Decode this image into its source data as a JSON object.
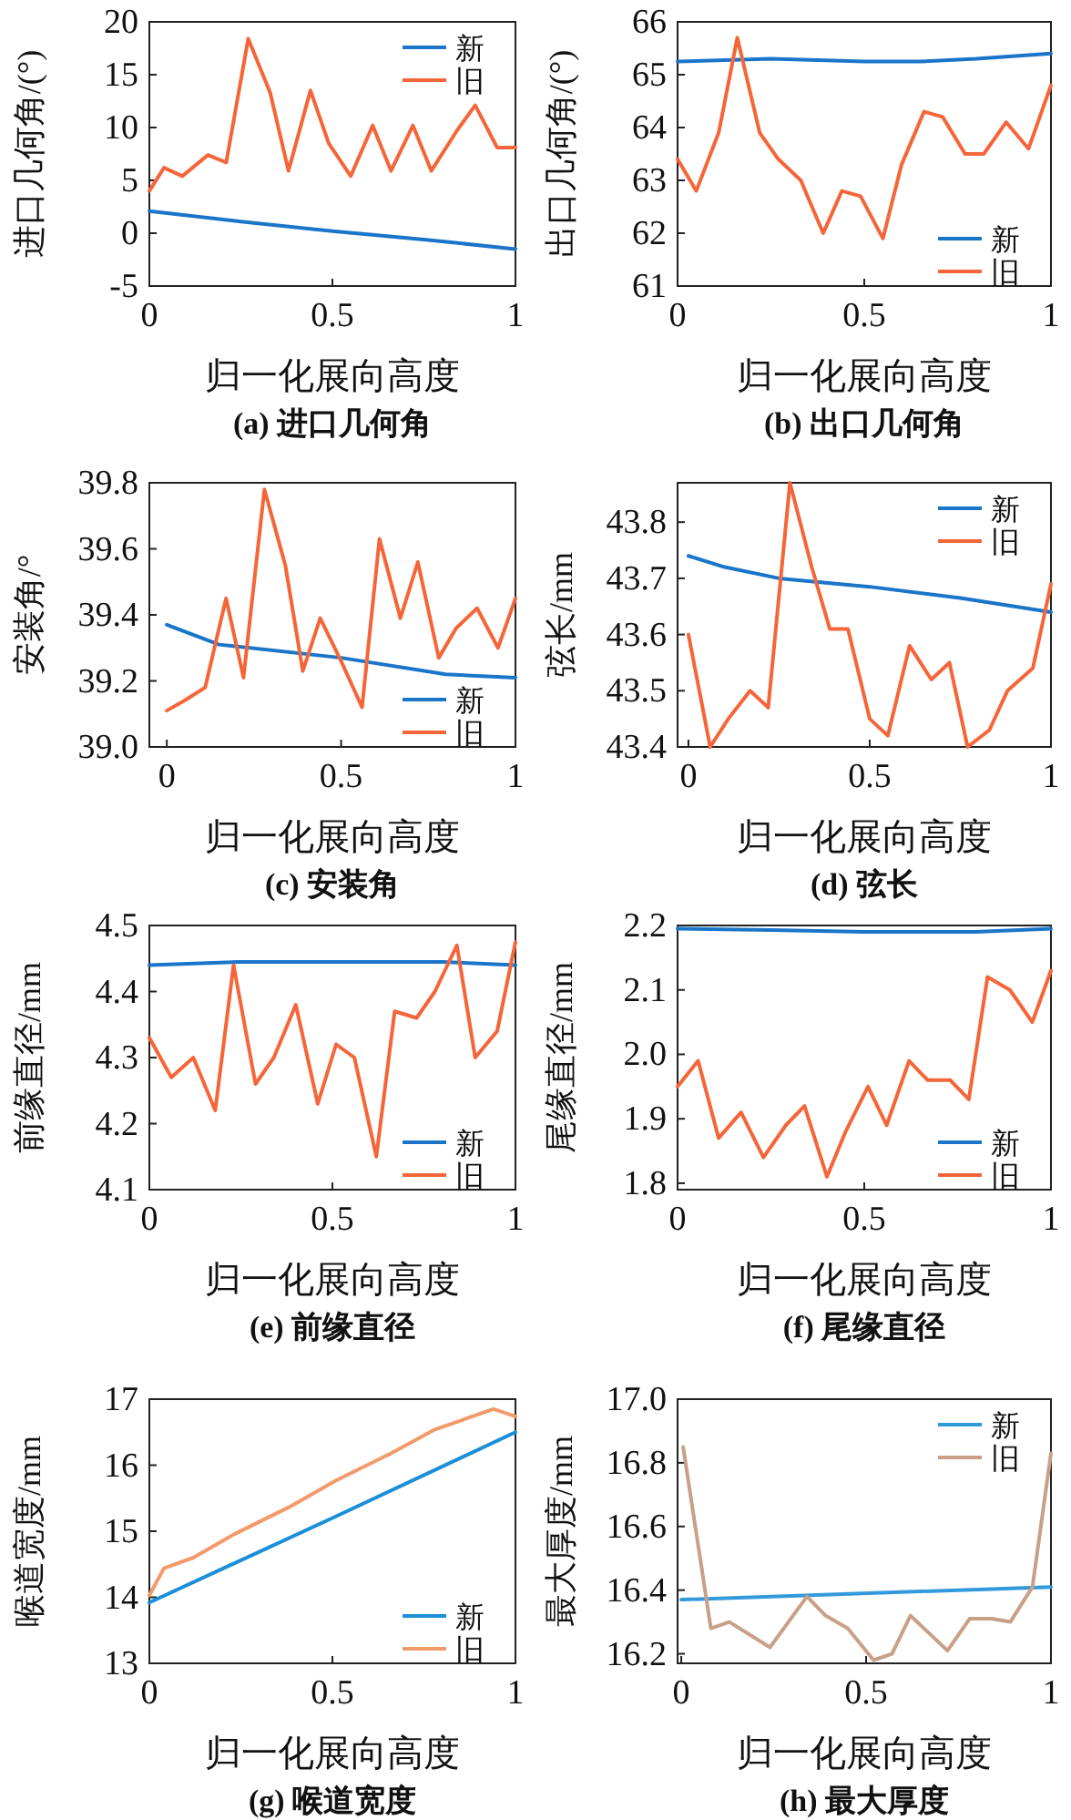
{
  "chart_data": [
    {
      "type": "line",
      "title": "(a) 进口几何角",
      "xlabel": "归一化展向高度",
      "ylabel": "进口几何角/(°)",
      "xlim": [
        0,
        1
      ],
      "ylim": [
        -5,
        20
      ],
      "xticks": [
        0,
        0.5,
        1
      ],
      "yticks": [
        -5,
        0,
        5,
        10,
        15,
        20
      ],
      "legend": "top right",
      "series": [
        {
          "name": "新",
          "color": "#1a75c9",
          "x": [
            0,
            0.25,
            0.5,
            0.75,
            1
          ],
          "values": [
            2.1,
            1.1,
            0.2,
            -0.6,
            -1.5
          ]
        },
        {
          "name": "旧",
          "color": "#f4663a",
          "x": [
            0,
            0.04,
            0.09,
            0.16,
            0.21,
            0.27,
            0.33,
            0.38,
            0.44,
            0.49,
            0.55,
            0.61,
            0.66,
            0.72,
            0.77,
            0.84,
            0.89,
            0.95,
            1
          ],
          "values": [
            4.0,
            6.2,
            5.4,
            7.4,
            6.7,
            18.4,
            13.3,
            5.9,
            13.5,
            8.5,
            5.4,
            10.2,
            5.9,
            10.2,
            5.9,
            9.7,
            12.1,
            8.1,
            8.1
          ]
        }
      ]
    },
    {
      "type": "line",
      "title": "(b) 出口几何角",
      "xlabel": "归一化展向高度",
      "ylabel": "出口几何角/(°)",
      "xlim": [
        0,
        1
      ],
      "ylim": [
        61,
        66
      ],
      "xticks": [
        0,
        0.5,
        1
      ],
      "yticks": [
        61,
        62,
        63,
        64,
        65,
        66
      ],
      "legend": "bottom right",
      "series": [
        {
          "name": "新",
          "color": "#1a75c9",
          "x": [
            0,
            0.25,
            0.5,
            0.65,
            0.8,
            1
          ],
          "values": [
            65.25,
            65.3,
            65.25,
            65.25,
            65.3,
            65.4
          ]
        },
        {
          "name": "旧",
          "color": "#f4663a",
          "x": [
            0,
            0.05,
            0.11,
            0.16,
            0.22,
            0.27,
            0.33,
            0.39,
            0.44,
            0.49,
            0.55,
            0.6,
            0.66,
            0.71,
            0.77,
            0.82,
            0.88,
            0.94,
            1
          ],
          "values": [
            63.4,
            62.8,
            63.9,
            65.7,
            63.9,
            63.4,
            63.0,
            62.0,
            62.8,
            62.7,
            61.9,
            63.3,
            64.3,
            64.2,
            63.5,
            63.5,
            64.1,
            63.6,
            64.8
          ]
        }
      ]
    },
    {
      "type": "line",
      "title": "(c) 安装角",
      "xlabel": "归一化展向高度",
      "ylabel": "安装角/°",
      "xlim": [
        -0.05,
        1
      ],
      "ylim": [
        39.0,
        39.8
      ],
      "xticks": [
        0,
        0.5,
        1
      ],
      "yticks": [
        {
          "value": 39,
          "label": "39.0"
        },
        39.2,
        39.4,
        39.6,
        39.8
      ],
      "legend": "bottom right",
      "series": [
        {
          "name": "新",
          "color": "#1a75c9",
          "x": [
            0,
            0.15,
            0.5,
            0.8,
            1
          ],
          "values": [
            39.37,
            39.31,
            39.27,
            39.22,
            39.21
          ]
        },
        {
          "name": "旧",
          "color": "#f4663a",
          "x": [
            0,
            0.05,
            0.11,
            0.17,
            0.22,
            0.28,
            0.34,
            0.39,
            0.44,
            0.5,
            0.56,
            0.61,
            0.67,
            0.72,
            0.78,
            0.83,
            0.89,
            0.95,
            1
          ],
          "values": [
            39.11,
            39.14,
            39.18,
            39.45,
            39.21,
            39.78,
            39.55,
            39.23,
            39.39,
            39.26,
            39.12,
            39.63,
            39.39,
            39.56,
            39.27,
            39.36,
            39.42,
            39.3,
            39.45
          ]
        }
      ]
    },
    {
      "type": "line",
      "title": "(d) 弦长",
      "xlabel": "归一化展向高度",
      "ylabel": "弦长/mm",
      "xlim": [
        -0.03,
        1
      ],
      "ylim": [
        43.4,
        43.87
      ],
      "xticks": [
        0,
        0.5,
        1
      ],
      "yticks": [
        43.4,
        43.5,
        43.6,
        43.7,
        43.8
      ],
      "legend": "top right",
      "series": [
        {
          "name": "新",
          "color": "#1a75c9",
          "x": [
            0,
            0.1,
            0.25,
            0.5,
            0.75,
            1
          ],
          "values": [
            43.74,
            43.72,
            43.7,
            43.685,
            43.665,
            43.64
          ]
        },
        {
          "name": "旧",
          "color": "#f4663a",
          "x": [
            0,
            0.06,
            0.11,
            0.17,
            0.22,
            0.28,
            0.34,
            0.39,
            0.44,
            0.5,
            0.55,
            0.61,
            0.67,
            0.72,
            0.77,
            0.83,
            0.88,
            0.95,
            1
          ],
          "values": [
            43.6,
            43.4,
            43.45,
            43.5,
            43.47,
            43.87,
            43.72,
            43.61,
            43.61,
            43.45,
            43.42,
            43.58,
            43.52,
            43.55,
            43.4,
            43.43,
            43.5,
            43.54,
            43.69
          ]
        }
      ]
    },
    {
      "type": "line",
      "title": "(e) 前缘直径",
      "xlabel": "归一化展向高度",
      "ylabel": "前缘直径/mm",
      "xlim": [
        0,
        1
      ],
      "ylim": [
        4.1,
        4.5
      ],
      "xticks": [
        0,
        0.5,
        1
      ],
      "yticks": [
        4.1,
        4.2,
        4.3,
        4.4,
        4.5
      ],
      "legend": "bottom right",
      "series": [
        {
          "name": "新",
          "color": "#1a75c9",
          "x": [
            0,
            0.25,
            0.5,
            0.8,
            1
          ],
          "values": [
            4.44,
            4.445,
            4.445,
            4.445,
            4.44
          ]
        },
        {
          "name": "旧",
          "color": "#f4663a",
          "x": [
            0,
            0.06,
            0.12,
            0.18,
            0.23,
            0.29,
            0.34,
            0.4,
            0.46,
            0.51,
            0.56,
            0.62,
            0.67,
            0.73,
            0.78,
            0.84,
            0.89,
            0.95,
            1
          ],
          "values": [
            4.33,
            4.27,
            4.3,
            4.22,
            4.44,
            4.26,
            4.3,
            4.38,
            4.23,
            4.32,
            4.3,
            4.15,
            4.37,
            4.36,
            4.4,
            4.47,
            4.3,
            4.34,
            4.475
          ]
        }
      ]
    },
    {
      "type": "line",
      "title": "(f) 尾缘直径",
      "xlabel": "归一化展向高度",
      "ylabel": "尾缘直径/mm",
      "xlim": [
        0,
        1
      ],
      "ylim": [
        1.79,
        2.2
      ],
      "xticks": [
        0,
        0.5,
        1
      ],
      "yticks": [
        1.8,
        1.9,
        {
          "value": 2,
          "label": "2.0"
        },
        2.1,
        2.2
      ],
      "legend": "bottom right",
      "series": [
        {
          "name": "新",
          "color": "#1a75c9",
          "x": [
            0,
            0.25,
            0.5,
            0.8,
            1
          ],
          "values": [
            2.195,
            2.193,
            2.19,
            2.19,
            2.195
          ]
        },
        {
          "name": "旧",
          "color": "#f4663a",
          "x": [
            0,
            0.055,
            0.11,
            0.17,
            0.23,
            0.29,
            0.34,
            0.4,
            0.45,
            0.51,
            0.56,
            0.62,
            0.67,
            0.73,
            0.78,
            0.83,
            0.89,
            0.95,
            1
          ],
          "values": [
            1.95,
            1.99,
            1.87,
            1.91,
            1.84,
            1.89,
            1.92,
            1.81,
            1.88,
            1.95,
            1.89,
            1.99,
            1.96,
            1.96,
            1.93,
            2.12,
            2.1,
            2.05,
            2.13
          ]
        }
      ]
    },
    {
      "type": "line",
      "title": "(g) 喉道宽度",
      "xlabel": "归一化展向高度",
      "ylabel": "喉道宽度/mm",
      "xlim": [
        0,
        1
      ],
      "ylim": [
        13,
        17
      ],
      "xticks": [
        0,
        0.5,
        1
      ],
      "yticks": [
        13,
        14,
        15,
        16,
        17
      ],
      "legend": "bottom right",
      "series": [
        {
          "name": "新",
          "color": "#1a8fd8",
          "x": [
            0,
            0.5,
            1
          ],
          "values": [
            13.92,
            15.2,
            16.5
          ]
        },
        {
          "name": "旧",
          "color": "#f39a6a",
          "x": [
            0,
            0.04,
            0.12,
            0.23,
            0.38,
            0.51,
            0.66,
            0.78,
            0.94,
            1
          ],
          "values": [
            14.03,
            14.44,
            14.6,
            14.95,
            15.36,
            15.77,
            16.18,
            16.54,
            16.85,
            16.74
          ]
        }
      ]
    },
    {
      "type": "line",
      "title": "(h) 最大厚度",
      "xlabel": "归一化展向高度",
      "ylabel": "最大厚度/mm",
      "xlim": [
        -0.01,
        1
      ],
      "ylim": [
        16.17,
        17.0
      ],
      "xticks": [
        0,
        0.5,
        1
      ],
      "yticks": [
        16.2,
        16.4,
        16.6,
        16.8,
        {
          "value": 17,
          "label": "17.0"
        }
      ],
      "legend": "top right",
      "series": [
        {
          "name": "新",
          "color": "#3399dd",
          "x": [
            0,
            1
          ],
          "values": [
            16.37,
            16.41
          ]
        },
        {
          "name": "旧",
          "color": "#c8a088",
          "x": [
            0.005,
            0.08,
            0.13,
            0.24,
            0.34,
            0.39,
            0.45,
            0.52,
            0.57,
            0.62,
            0.72,
            0.78,
            0.84,
            0.89,
            0.95,
            1
          ],
          "values": [
            16.85,
            16.28,
            16.3,
            16.22,
            16.38,
            16.32,
            16.28,
            16.18,
            16.2,
            16.32,
            16.21,
            16.31,
            16.31,
            16.3,
            16.41,
            16.83
          ]
        }
      ]
    }
  ]
}
